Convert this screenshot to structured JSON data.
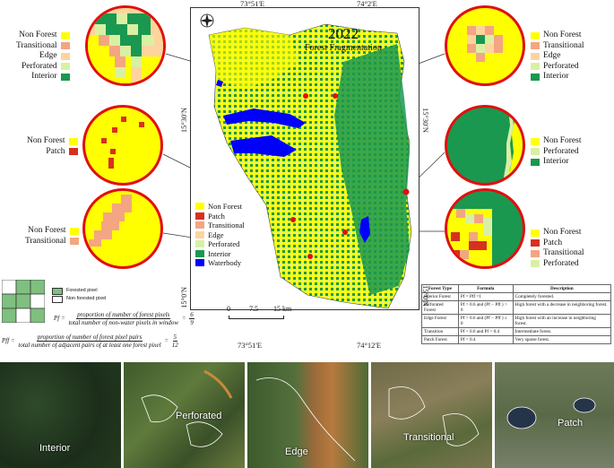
{
  "map": {
    "year": "2022",
    "subtitle": "Forest Fragmentation",
    "coords": {
      "top_left": "73°51'E",
      "top_right": "74°2'E",
      "bottom_left": "73°51'E",
      "bottom_right": "74°12'E",
      "left_upper": "15°30'N",
      "left_lower": "15°0'N",
      "right_upper": "15°30'N",
      "right_lower": "15°0'N"
    },
    "scale": {
      "labels": [
        "0",
        "7.5",
        "15 km"
      ]
    },
    "legend": [
      {
        "label": "Non Forest",
        "color": "#ffff00"
      },
      {
        "label": "Patch",
        "color": "#d7301f"
      },
      {
        "label": "Transitional",
        "color": "#f4a582"
      },
      {
        "label": "Edge",
        "color": "#fdd49e"
      },
      {
        "label": "Perforated",
        "color": "#d9f0a3"
      },
      {
        "label": "Interior",
        "color": "#1a9850"
      },
      {
        "label": "Waterbody",
        "color": "#0000ff"
      }
    ]
  },
  "zoom_legends": {
    "top_left": [
      "Non Forest",
      "Transitional",
      "Edge",
      "Perforated",
      "Interior"
    ],
    "mid_left": [
      "Non Forest",
      "Patch"
    ],
    "low_left": [
      "Non Forest",
      "Transitional"
    ],
    "top_right": [
      "Non Forest",
      "Transitional",
      "Edge",
      "Perforated",
      "Interior"
    ],
    "mid_right": [
      "Non Forest",
      "Perforated",
      "Interior"
    ],
    "low_right": [
      "Non Forest",
      "Patch",
      "Transitional",
      "Perforated"
    ]
  },
  "pixel_key": {
    "forested": "Forested pixel",
    "non_forested": "Non forested pixel"
  },
  "formulas": {
    "pf_lhs": "Pf =",
    "pf_num": "proportion of number of forest pixels",
    "pf_den": "total number of non-water pixels in window",
    "pf_val_num": "6",
    "pf_val_den": "9",
    "pff_lhs": "Pff =",
    "pff_num": "proportion of number of forest pixel pairs",
    "pff_den": "total number of adjacent pairs of at least one forest pixel",
    "pff_val_num": "5",
    "pff_val_den": "12"
  },
  "table": {
    "headers": [
      "Forest Type",
      "Formula",
      "Description"
    ],
    "rows": [
      [
        "Interior Forest",
        "Pf = Pff =1",
        "Completely forested."
      ],
      [
        "Perforated Forest",
        "Pf > 0.6 and (Pf − Pff ) > 0",
        "High forest with a decrease in neighboring forest."
      ],
      [
        "Edge Forest",
        "Pf > 0.6 and (Pf − Pff ) ≤ 0",
        "High forest with an increase in neighboring forest."
      ],
      [
        "Transition",
        "Pf < 0.6 and Pf > 0.4",
        "Intermediate forest."
      ],
      [
        "Patch Forest",
        "Pf < 0.4",
        "Very sparse forest."
      ]
    ]
  },
  "photos": [
    {
      "label": "Interior"
    },
    {
      "label": "Perforated"
    },
    {
      "label": "Edge"
    },
    {
      "label": "Transitional"
    },
    {
      "label": "Patch"
    }
  ]
}
